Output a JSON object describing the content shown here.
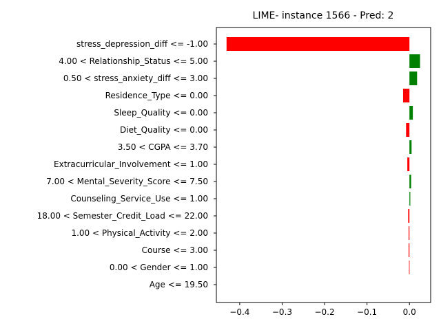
{
  "chart_data": {
    "type": "bar",
    "orientation": "horizontal",
    "title": "LIME- instance 1566 - Pred: 2",
    "xlabel": "",
    "ylabel": "",
    "xlim": [
      -0.455,
      0.05
    ],
    "xticks": [
      -0.4,
      -0.3,
      -0.2,
      -0.1,
      0.0
    ],
    "xtick_labels": [
      "−0.4",
      "−0.3",
      "−0.2",
      "−0.1",
      "0.0"
    ],
    "grid": false,
    "categories": [
      "stress_depression_diff <= -1.00",
      "4.00 < Relationship_Status <= 5.00",
      "0.50 < stress_anxiety_diff <= 3.00",
      "Residence_Type <= 0.00",
      "Sleep_Quality <= 0.00",
      "Diet_Quality <= 0.00",
      "3.50 < CGPA <= 3.70",
      "Extracurricular_Involvement <= 1.00",
      "7.00 < Mental_Severity_Score <= 7.50",
      "Counseling_Service_Use <= 1.00",
      "18.00 < Semester_Credit_Load <= 22.00",
      "1.00 < Physical_Activity <= 2.00",
      "Course <= 3.00",
      "0.00 < Gender <= 1.00",
      "Age <= 19.50"
    ],
    "values": [
      -0.431,
      0.025,
      0.018,
      -0.015,
      0.008,
      -0.008,
      0.005,
      -0.005,
      0.004,
      0.002,
      -0.003,
      -0.002,
      -0.002,
      -0.001,
      0.0
    ],
    "colors": {
      "positive": "#008000",
      "negative": "#ff0000"
    }
  }
}
